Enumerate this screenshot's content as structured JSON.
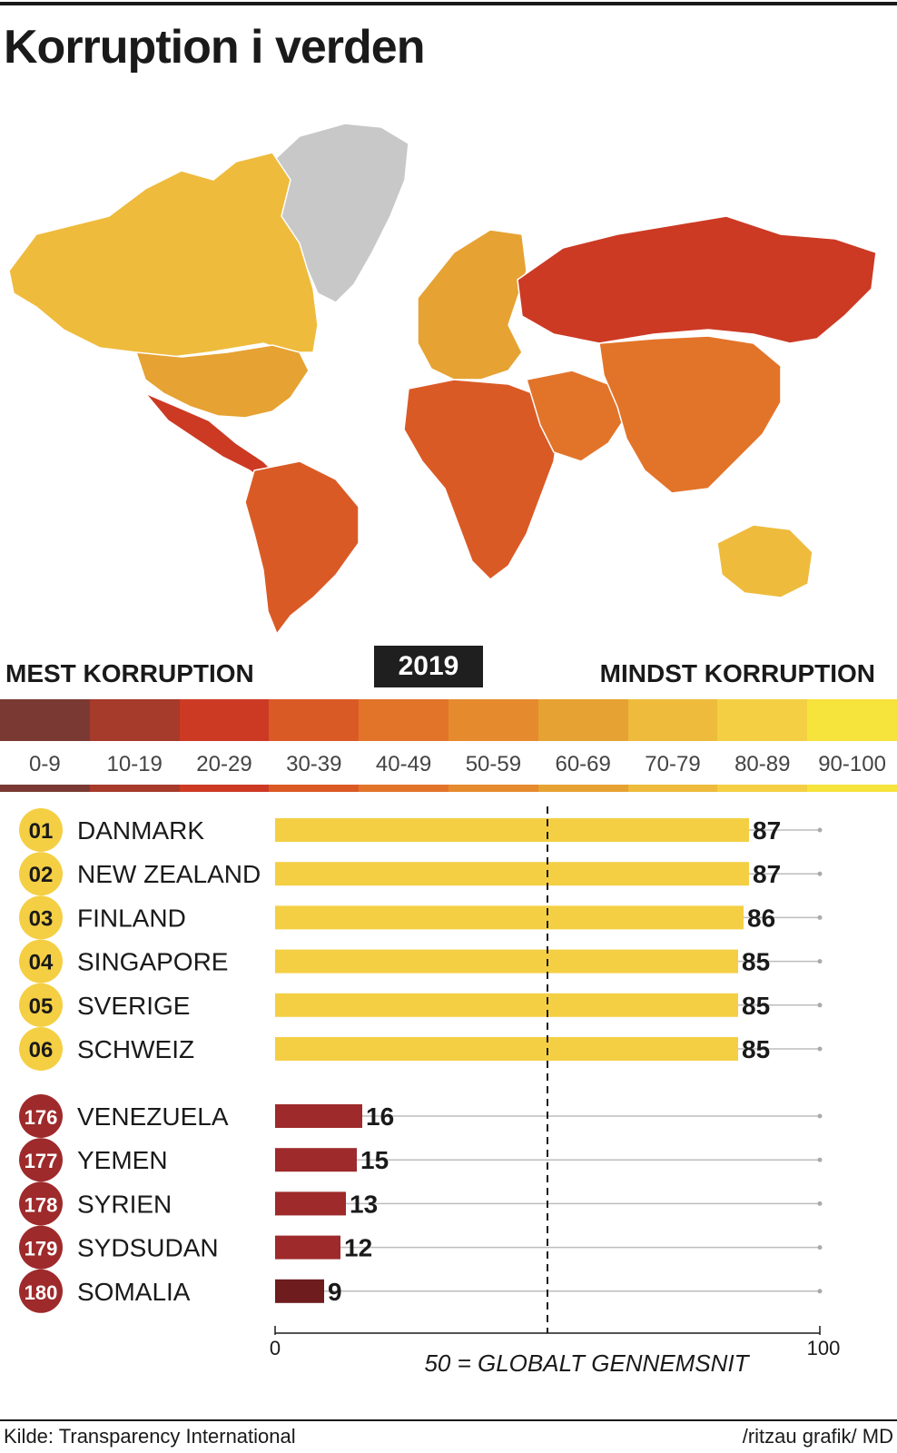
{
  "title": "Korruption i verden",
  "legend": {
    "most_label": "MEST KORRUPTION",
    "least_label": "MINDST KORRUPTION",
    "year": "2019",
    "ranges": [
      "0-9",
      "10-19",
      "20-29",
      "30-39",
      "40-49",
      "50-59",
      "60-69",
      "70-79",
      "80-89",
      "90-100"
    ],
    "colors": [
      "#7a3a33",
      "#a63a2b",
      "#cc3a24",
      "#da5a26",
      "#e2742a",
      "#e68a2e",
      "#e6a232",
      "#eebb3c",
      "#f4cf44",
      "#f6e33c"
    ]
  },
  "map": {
    "regions": [
      {
        "name": "Greenland",
        "score": null
      },
      {
        "name": "Canada",
        "score": 77
      },
      {
        "name": "USA",
        "score": 69
      },
      {
        "name": "Mexico",
        "score": 29
      },
      {
        "name": "South America",
        "score": 35
      },
      {
        "name": "Europe",
        "score": 66
      },
      {
        "name": "Russia",
        "score": 28
      },
      {
        "name": "Africa",
        "score": 32
      },
      {
        "name": "Middle East",
        "score": 40
      },
      {
        "name": "Asia",
        "score": 41
      },
      {
        "name": "Australia",
        "score": 77
      }
    ]
  },
  "chart_data": {
    "type": "bar",
    "xlim": [
      0,
      100
    ],
    "x_tick_labels": [
      "0",
      "100"
    ],
    "reference_line": {
      "value": 50,
      "label": "50 = GLOBALT GENNEMSNIT"
    },
    "top_color": "#f4cf44",
    "bottom_color": "#9e2a2b",
    "somalia_color": "#6e1c1e",
    "top_countries": [
      {
        "rank": "01",
        "name": "DANMARK",
        "value": 87
      },
      {
        "rank": "02",
        "name": "NEW ZEALAND",
        "value": 87
      },
      {
        "rank": "03",
        "name": "FINLAND",
        "value": 86
      },
      {
        "rank": "04",
        "name": "SINGAPORE",
        "value": 85
      },
      {
        "rank": "05",
        "name": "SVERIGE",
        "value": 85
      },
      {
        "rank": "06",
        "name": "SCHWEIZ",
        "value": 85
      }
    ],
    "bottom_countries": [
      {
        "rank": "176",
        "name": "VENEZUELA",
        "value": 16
      },
      {
        "rank": "177",
        "name": "YEMEN",
        "value": 15
      },
      {
        "rank": "178",
        "name": "SYRIEN",
        "value": 13
      },
      {
        "rank": "179",
        "name": "SYDSUDAN",
        "value": 12
      },
      {
        "rank": "180",
        "name": "SOMALIA",
        "value": 9
      }
    ]
  },
  "footer": {
    "source": "Kilde: Transparency International",
    "credit": "/ritzau grafik/ MD"
  }
}
